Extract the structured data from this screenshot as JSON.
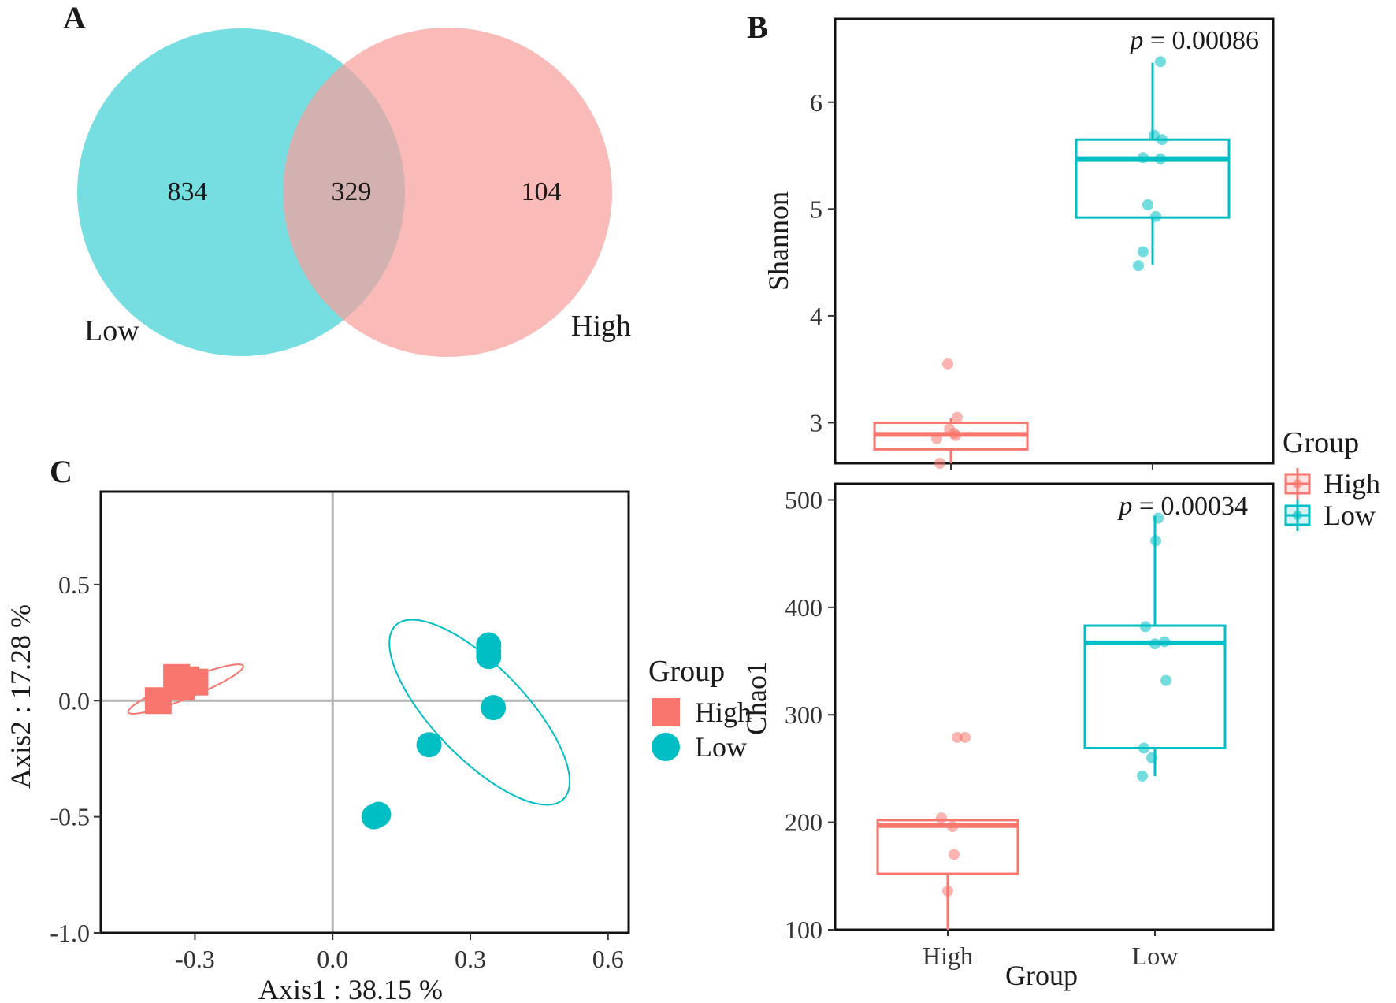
{
  "colors": {
    "high": "#f8766d",
    "low": "#00bfc4",
    "venn_low": "#4fd5d9",
    "venn_high": "#f7a09c",
    "grid": "#b3b3b3"
  },
  "panels": {
    "A": "A",
    "B": "B",
    "C": "C"
  },
  "venn": {
    "sets": [
      {
        "name": "Low",
        "only": "834"
      },
      {
        "name": "High",
        "only": "104"
      }
    ],
    "overlap": "329"
  },
  "chart_data": [
    {
      "id": "venn",
      "type": "venn",
      "sets": [
        "Low",
        "High"
      ],
      "values": {
        "Low_only": 834,
        "intersection": 329,
        "High_only": 104
      }
    },
    {
      "id": "shannon",
      "type": "box",
      "ylabel": "Shannon",
      "ylim": [
        2.62,
        6.78
      ],
      "yticks": [
        3,
        4,
        5,
        6
      ],
      "p_prefix": "p",
      "p_label": " = 0.00086",
      "groups": [
        {
          "name": "High",
          "q1": 2.75,
          "median": 2.89,
          "q3": 3.0,
          "whisker_low": 2.6,
          "whisker_high": 3.04,
          "points": [
            2.62,
            2.85,
            2.88,
            2.9,
            2.94,
            3.05,
            3.55
          ]
        },
        {
          "name": "Low",
          "q1": 4.92,
          "median": 5.47,
          "q3": 5.65,
          "whisker_low": 4.48,
          "whisker_high": 6.37,
          "points": [
            4.47,
            4.6,
            4.93,
            5.04,
            5.47,
            5.48,
            5.65,
            5.69,
            6.38
          ]
        }
      ]
    },
    {
      "id": "chao1",
      "type": "box",
      "xlabel": "Group",
      "ylabel": "Chao1",
      "ylim": [
        100,
        515
      ],
      "yticks": [
        100,
        200,
        300,
        400,
        500
      ],
      "categories": [
        "High",
        "Low"
      ],
      "p_prefix": "p",
      "p_label": " = 0.00034",
      "groups": [
        {
          "name": "High",
          "q1": 152,
          "median": 197,
          "q3": 202,
          "whisker_low": 100,
          "whisker_high": 202,
          "points": [
            136,
            170,
            196,
            204,
            279,
            279
          ]
        },
        {
          "name": "Low",
          "q1": 269,
          "median": 367,
          "q3": 383,
          "whisker_low": 243,
          "whisker_high": 485,
          "points": [
            243,
            260,
            269,
            332,
            366,
            368,
            382,
            462,
            483
          ]
        }
      ]
    },
    {
      "id": "pcoa",
      "type": "scatter",
      "xlabel": "Axis1 : 38.15 %",
      "ylabel": "Axis2 : 17.28 %",
      "xlim": [
        -0.505,
        0.645
      ],
      "ylim": [
        -1.0,
        0.9
      ],
      "xticks": [
        -0.3,
        0.0,
        0.3,
        0.6
      ],
      "xtick_labels": [
        "-0.3",
        "0.0",
        "0.3",
        "0.6"
      ],
      "yticks": [
        -1.0,
        -0.5,
        0.0,
        0.5
      ],
      "ytick_labels": [
        "-1.0",
        "-0.5",
        "0.0",
        "0.5"
      ],
      "series": [
        {
          "name": "High",
          "shape": "square",
          "x": [
            -0.38,
            -0.34,
            -0.32,
            -0.3,
            -0.33
          ],
          "y": [
            0.0,
            0.1,
            0.09,
            0.08,
            0.06
          ],
          "ellipse": {
            "cx": -0.32,
            "cy": 0.05,
            "rx": 0.135,
            "ry": 0.04,
            "angle_deg": 22
          }
        },
        {
          "name": "Low",
          "shape": "circle",
          "x": [
            0.09,
            0.1,
            0.21,
            0.34,
            0.34,
            0.34,
            0.35
          ],
          "y": [
            -0.5,
            -0.49,
            -0.19,
            0.24,
            0.21,
            0.19,
            -0.03
          ],
          "ellipse": {
            "cx": 0.32,
            "cy": -0.05,
            "rx": 0.1,
            "ry": 0.52,
            "angle_deg": 44
          }
        }
      ]
    }
  ],
  "legend_box": {
    "title": "Group",
    "items": [
      "High",
      "Low"
    ]
  },
  "legend_pcoa": {
    "title": "Group",
    "items": [
      "High",
      "Low"
    ]
  }
}
